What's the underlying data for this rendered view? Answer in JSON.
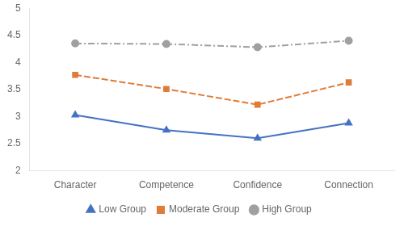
{
  "chart_data": {
    "type": "line",
    "categories": [
      "Character",
      "Competence",
      "Confidence",
      "Connection"
    ],
    "series": [
      {
        "name": "High Group",
        "color": "#A0A0A0",
        "values": [
          4.35,
          4.34,
          4.28,
          4.4
        ],
        "marker": "circle",
        "line_style": "dashdot"
      },
      {
        "name": "Moderate Group",
        "color": "#E07B39",
        "values": [
          3.77,
          3.51,
          3.22,
          3.63
        ],
        "marker": "square",
        "line_style": "dashed"
      },
      {
        "name": "Low Group",
        "color": "#4472C4",
        "values": [
          3.03,
          2.75,
          2.6,
          2.88
        ],
        "marker": "triangle",
        "line_style": "solid"
      }
    ],
    "ylim": [
      2.0,
      5.0
    ],
    "yticks": [
      2,
      2.5,
      3,
      3.5,
      4,
      4.5,
      5
    ],
    "grid": false,
    "legend": "bottom"
  }
}
